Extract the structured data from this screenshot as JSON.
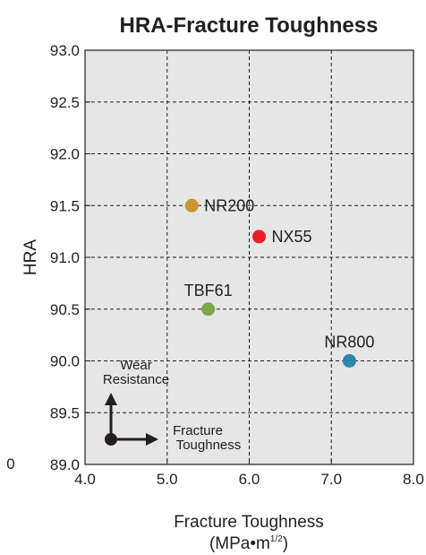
{
  "chart_data": {
    "type": "scatter",
    "title": "HRA-Fracture Toughness",
    "xlabel": "Fracture Toughness",
    "xlabel_unit": {
      "base": "(MPa•m",
      "sup": "1/2",
      "close": ")"
    },
    "ylabel": "HRA",
    "xlim": [
      4.0,
      8.0
    ],
    "ylim": [
      89.0,
      93.0
    ],
    "x_ticks": [
      "4.0",
      "5.0",
      "6.0",
      "7.0",
      "8.0"
    ],
    "y_ticks": [
      "89.0",
      "89.5",
      "90.0",
      "90.5",
      "91.0",
      "91.5",
      "92.0",
      "92.5",
      "93.0"
    ],
    "stray_label": "0",
    "grid": true,
    "points": [
      {
        "label": "NR200",
        "x": 5.3,
        "y": 91.5,
        "color": "#c8962e"
      },
      {
        "label": "NX55",
        "x": 6.12,
        "y": 91.2,
        "color": "#e8202a"
      },
      {
        "label": "TBF61",
        "x": 5.5,
        "y": 90.5,
        "color": "#7aa84a"
      },
      {
        "label": "NR800",
        "x": 7.22,
        "y": 90.0,
        "color": "#2e86ab"
      }
    ],
    "annotation": {
      "wear": [
        "Wear",
        "Resistance"
      ],
      "fracture": [
        "Fracture",
        "Toughness"
      ]
    }
  }
}
